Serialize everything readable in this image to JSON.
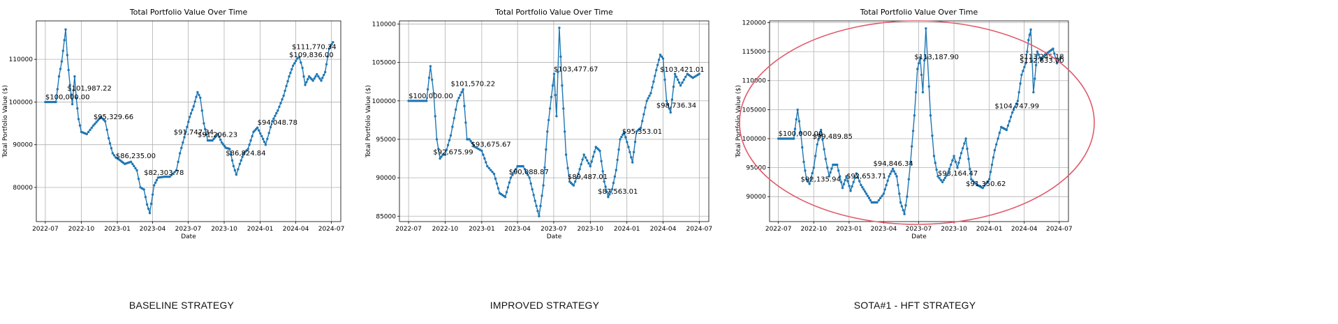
{
  "charts": [
    {
      "caption": "BASELINE STRATEGY",
      "chart_data": {
        "type": "line",
        "title": "Total Portfolio Value Over Time",
        "xlabel": "Date",
        "ylabel": "Total Portfolio Value ($)",
        "xlim": [
          "2022-06-08",
          "2024-07-25"
        ],
        "ylim": [
          72000,
          119000
        ],
        "y_ticks": [
          80000,
          90000,
          100000,
          110000
        ],
        "x_ticks": [
          "2022-07",
          "2022-10",
          "2023-01",
          "2023-04",
          "2023-07",
          "2023-10",
          "2024-01",
          "2024-04",
          "2024-07"
        ],
        "grid": true,
        "series": [
          {
            "x": [
              "2022-07-01",
              "2022-07-28",
              "2022-08-05",
              "2022-08-12",
              "2022-08-22",
              "2022-08-26",
              "2022-09-02",
              "2022-09-08",
              "2022-09-14",
              "2022-09-18",
              "2022-09-24",
              "2022-10-01",
              "2022-10-15",
              "2022-11-01",
              "2022-11-20",
              "2022-12-01",
              "2022-12-10",
              "2022-12-20",
              "2022-12-28",
              "2023-01-06",
              "2023-01-20",
              "2023-02-05",
              "2023-02-20",
              "2023-03-01",
              "2023-03-10",
              "2023-03-18",
              "2023-03-25",
              "2023-04-05",
              "2023-04-15",
              "2023-05-01",
              "2023-05-15",
              "2023-06-01",
              "2023-06-10",
              "2023-06-25",
              "2023-07-05",
              "2023-07-15",
              "2023-07-25",
              "2023-08-01",
              "2023-08-10",
              "2023-08-20",
              "2023-09-01",
              "2023-09-15",
              "2023-09-25",
              "2023-10-05",
              "2023-10-15",
              "2023-10-25",
              "2023-11-01",
              "2023-11-10",
              "2023-11-20",
              "2023-12-01",
              "2023-12-15",
              "2023-12-25",
              "2024-01-05",
              "2024-01-15",
              "2024-02-01",
              "2024-02-15",
              "2024-03-01",
              "2024-03-15",
              "2024-03-25",
              "2024-04-05",
              "2024-04-10",
              "2024-04-18",
              "2024-04-25",
              "2024-05-05",
              "2024-05-15",
              "2024-05-25",
              "2024-06-05",
              "2024-06-15",
              "2024-06-25",
              "2024-07-05"
            ],
            "y": [
              100000,
              100000,
              106000,
              109500,
              117000,
              111000,
              104000,
              99500,
              106000,
              101000,
              96000,
              93000,
              92500,
              94500,
              96500,
              95500,
              91500,
              88000,
              87000,
              86500,
              85500,
              86000,
              84000,
              80000,
              79500,
              76000,
              74000,
              80500,
              82300,
              82500,
              82500,
              84000,
              88000,
              93000,
              96500,
              99000,
              102300,
              101000,
              95000,
              91000,
              91000,
              92500,
              90500,
              89300,
              89000,
              85000,
              83000,
              85500,
              88000,
              89000,
              93000,
              94000,
              92000,
              90000,
              95500,
              98000,
              101500,
              106000,
              108500,
              110200,
              110500,
              108000,
              104000,
              106000,
              105000,
              106500,
              105000,
              107000,
              112500,
              114000
            ]
          }
        ],
        "annotations": [
          {
            "x": "2022-07-01",
            "y": 100000,
            "label": "$100,000.00"
          },
          {
            "x": "2022-08-26",
            "y": 101987.22,
            "label": "$101,987.22"
          },
          {
            "x": "2022-11-01",
            "y": 95329.66,
            "label": "$95,329.66"
          },
          {
            "x": "2022-12-28",
            "y": 86235.0,
            "label": "$86,235.00"
          },
          {
            "x": "2023-03-10",
            "y": 82303.78,
            "label": "$82,303.78"
          },
          {
            "x": "2023-05-25",
            "y": 91747.34,
            "label": "$91,747.34"
          },
          {
            "x": "2023-07-25",
            "y": 91206.23,
            "label": "$91,206.23"
          },
          {
            "x": "2023-10-05",
            "y": 86824.84,
            "label": "$86,824.84"
          },
          {
            "x": "2023-12-25",
            "y": 94048.78,
            "label": "$94,048.78"
          },
          {
            "x": "2024-03-15",
            "y": 109836.0,
            "label": "$109,836.00"
          },
          {
            "x": "2024-05-25",
            "y": 111770.34,
            "label": "$111,770.34"
          }
        ]
      }
    },
    {
      "caption": "IMPROVED STRATEGY",
      "chart_data": {
        "type": "line",
        "title": "Total Portfolio Value Over Time",
        "xlabel": "Date",
        "ylabel": "Total Portfolio Value ($)",
        "xlim": [
          "2022-06-08",
          "2024-07-25"
        ],
        "ylim": [
          84300,
          110400
        ],
        "y_ticks": [
          85000,
          90000,
          95000,
          100000,
          105000,
          110000
        ],
        "x_ticks": [
          "2022-07",
          "2022-10",
          "2023-01",
          "2023-04",
          "2023-07",
          "2023-10",
          "2024-01",
          "2024-04",
          "2024-07"
        ],
        "grid": true,
        "series": [
          {
            "x": [
              "2022-07-01",
              "2022-08-15",
              "2022-08-25",
              "2022-09-02",
              "2022-09-10",
              "2022-09-18",
              "2022-09-25",
              "2022-10-01",
              "2022-10-15",
              "2022-11-01",
              "2022-11-15",
              "2022-11-25",
              "2022-12-01",
              "2022-12-15",
              "2023-01-01",
              "2023-01-15",
              "2023-02-01",
              "2023-02-15",
              "2023-03-01",
              "2023-03-15",
              "2023-04-01",
              "2023-04-15",
              "2023-05-01",
              "2023-05-15",
              "2023-05-25",
              "2023-06-05",
              "2023-06-15",
              "2023-06-25",
              "2023-07-02",
              "2023-07-08",
              "2023-07-15",
              "2023-07-22",
              "2023-08-01",
              "2023-08-10",
              "2023-08-20",
              "2023-09-01",
              "2023-09-15",
              "2023-10-01",
              "2023-10-15",
              "2023-10-25",
              "2023-11-05",
              "2023-11-15",
              "2023-11-25",
              "2023-12-05",
              "2023-12-15",
              "2023-12-25",
              "2024-01-05",
              "2024-01-15",
              "2024-01-25",
              "2024-02-05",
              "2024-02-20",
              "2024-03-01",
              "2024-03-15",
              "2024-03-25",
              "2024-04-01",
              "2024-04-10",
              "2024-04-20",
              "2024-05-01",
              "2024-05-15",
              "2024-06-01",
              "2024-06-15",
              "2024-07-01"
            ],
            "y": [
              100000,
              100000,
              104500,
              101000,
              95000,
              92500,
              93000,
              93000,
              95500,
              100000,
              101500,
              95000,
              95000,
              94000,
              93500,
              91500,
              90500,
              88000,
              87500,
              90000,
              91500,
              91500,
              90000,
              87000,
              85000,
              89000,
              96000,
              100500,
              103500,
              98000,
              109500,
              102000,
              93000,
              89500,
              89000,
              90500,
              93000,
              91500,
              94000,
              93500,
              89500,
              87500,
              88500,
              91000,
              95000,
              95900,
              94000,
              92000,
              96000,
              96500,
              100000,
              101000,
              104000,
              106000,
              105500,
              100000,
              98500,
              103500,
              102000,
              103500,
              103000,
              103500
            ]
          }
        ],
        "annotations": [
          {
            "x": "2022-07-01",
            "y": 100000,
            "label": "$100,000.00"
          },
          {
            "x": "2022-09-01",
            "y": 92675.99,
            "label": "$92,675.99"
          },
          {
            "x": "2022-10-15",
            "y": 101570.22,
            "label": "$101,570.22"
          },
          {
            "x": "2022-12-05",
            "y": 93675.67,
            "label": "$93,675.67"
          },
          {
            "x": "2023-03-10",
            "y": 90088.87,
            "label": "$90,088.87"
          },
          {
            "x": "2023-07-01",
            "y": 103477.67,
            "label": "$103,477.67"
          },
          {
            "x": "2023-08-05",
            "y": 89487.01,
            "label": "$89,487.01"
          },
          {
            "x": "2023-10-20",
            "y": 87563.01,
            "label": "$87,563.01"
          },
          {
            "x": "2023-12-20",
            "y": 95353.01,
            "label": "$95,353.01"
          },
          {
            "x": "2024-03-15",
            "y": 98736.34,
            "label": "$98,736.34"
          },
          {
            "x": "2024-06-01",
            "y": 103421.01,
            "label": "$103,421.01"
          }
        ]
      }
    },
    {
      "caption": "SOTA#1 - HFT STRATEGY",
      "chart_data": {
        "type": "line",
        "title": "Total Portfolio Value Over Time",
        "xlabel": "Date",
        "ylabel": "Total Portfolio Value ($)",
        "xlim": [
          "2022-06-08",
          "2024-07-25"
        ],
        "ylim": [
          85700,
          120300
        ],
        "y_ticks": [
          90000,
          95000,
          100000,
          105000,
          110000,
          115000,
          120000
        ],
        "x_ticks": [
          "2022-07",
          "2022-10",
          "2023-01",
          "2023-04",
          "2023-07",
          "2023-10",
          "2024-01",
          "2024-04",
          "2024-07"
        ],
        "grid": true,
        "series": [
          {
            "x": [
              "2022-07-01",
              "2022-08-10",
              "2022-08-20",
              "2022-08-28",
              "2022-09-05",
              "2022-09-12",
              "2022-09-20",
              "2022-10-01",
              "2022-10-10",
              "2022-10-20",
              "2022-11-01",
              "2022-11-10",
              "2022-11-20",
              "2022-12-01",
              "2022-12-15",
              "2022-12-25",
              "2023-01-05",
              "2023-01-20",
              "2023-02-01",
              "2023-02-15",
              "2023-03-01",
              "2023-03-15",
              "2023-04-01",
              "2023-04-15",
              "2023-04-25",
              "2023-05-05",
              "2023-05-15",
              "2023-05-25",
              "2023-06-01",
              "2023-06-10",
              "2023-06-20",
              "2023-06-28",
              "2023-07-05",
              "2023-07-12",
              "2023-07-20",
              "2023-08-01",
              "2023-08-10",
              "2023-08-20",
              "2023-09-01",
              "2023-09-15",
              "2023-10-01",
              "2023-10-10",
              "2023-10-20",
              "2023-11-01",
              "2023-11-15",
              "2023-12-01",
              "2023-12-15",
              "2024-01-01",
              "2024-01-15",
              "2024-02-01",
              "2024-02-15",
              "2024-03-01",
              "2024-03-15",
              "2024-03-25",
              "2024-04-05",
              "2024-04-12",
              "2024-04-18",
              "2024-04-25",
              "2024-05-05",
              "2024-05-15",
              "2024-05-25",
              "2024-06-05",
              "2024-06-15",
              "2024-06-25",
              "2024-07-05"
            ],
            "y": [
              100000,
              100000,
              105000,
              101000,
              96000,
              93000,
              92200,
              95000,
              99000,
              101500,
              96500,
              93500,
              95500,
              95500,
              91500,
              93500,
              91000,
              94000,
              92000,
              90500,
              89000,
              89000,
              90500,
              93500,
              94800,
              93500,
              89000,
              87000,
              90000,
              96000,
              104000,
              112000,
              114000,
              108000,
              119000,
              104000,
              97000,
              93500,
              92500,
              94000,
              97000,
              95000,
              97500,
              100000,
              93000,
              92000,
              91500,
              93000,
              98000,
              102000,
              101500,
              104500,
              106500,
              111000,
              113000,
              117000,
              118800,
              108000,
              115000,
              113500,
              114500,
              115000,
              115500,
              113000,
              114000
            ]
          }
        ],
        "annotations": [
          {
            "x": "2022-07-01",
            "y": 100000,
            "label": "$100,000.00"
          },
          {
            "x": "2022-08-28",
            "y": 92135.94,
            "label": "$92,135.94"
          },
          {
            "x": "2022-09-28",
            "y": 99489.85,
            "label": "$99,489.85"
          },
          {
            "x": "2022-12-25",
            "y": 92653.71,
            "label": "$92,653.71"
          },
          {
            "x": "2023-03-05",
            "y": 94846.34,
            "label": "$94,846.34"
          },
          {
            "x": "2023-06-20",
            "y": 113187.9,
            "label": "$113,187.90"
          },
          {
            "x": "2023-08-20",
            "y": 93164.47,
            "label": "$93,164.47"
          },
          {
            "x": "2023-11-01",
            "y": 91350.62,
            "label": "$91,350.62"
          },
          {
            "x": "2024-01-15",
            "y": 104747.99,
            "label": "$104,747.99"
          },
          {
            "x": "2024-03-25",
            "y": 112633.6,
            "label": "$112,633.60"
          },
          {
            "x": "2024-05-15",
            "y": 113245.18,
            "label": "$113,245.18"
          }
        ],
        "highlight": "red ellipse"
      }
    }
  ]
}
